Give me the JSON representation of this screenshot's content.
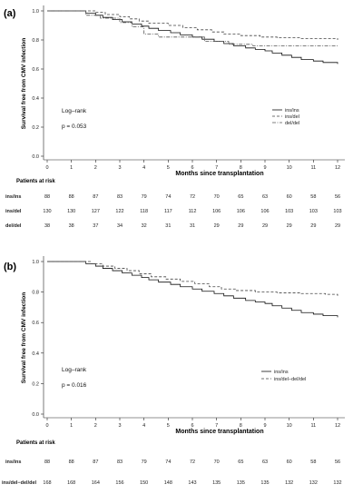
{
  "chart_data": [
    {
      "panel_label": "(a)",
      "type": "line",
      "chart_kind": "kaplan-meier",
      "xlabel": "Months since transplantation",
      "ylabel": "Survival free from CMV infection",
      "xlim": [
        0,
        12
      ],
      "ylim": [
        0,
        1
      ],
      "x_ticks": [
        0,
        1,
        2,
        3,
        4,
        5,
        6,
        7,
        8,
        9,
        10,
        11,
        12
      ],
      "y_ticks": [
        "0.0",
        "0.2",
        "0.4",
        "0.6",
        "0.8",
        "1.0"
      ],
      "annotation_test": "Log–rank",
      "annotation_p": "p = 0.053",
      "legend_position": "right",
      "series": [
        {
          "name": "ins/ins",
          "dash": "solid",
          "color": "#111111",
          "points": [
            [
              0,
              1
            ],
            [
              1.2,
              1
            ],
            [
              1.6,
              0.985
            ],
            [
              2,
              0.97
            ],
            [
              2.3,
              0.955
            ],
            [
              2.7,
              0.94
            ],
            [
              3.1,
              0.925
            ],
            [
              3.5,
              0.91
            ],
            [
              3.9,
              0.895
            ],
            [
              4.2,
              0.88
            ],
            [
              4.6,
              0.865
            ],
            [
              5.1,
              0.85
            ],
            [
              5.5,
              0.835
            ],
            [
              6,
              0.82
            ],
            [
              6.4,
              0.805
            ],
            [
              6.9,
              0.79
            ],
            [
              7.3,
              0.775
            ],
            [
              7.7,
              0.76
            ],
            [
              8.2,
              0.745
            ],
            [
              8.6,
              0.735
            ],
            [
              9,
              0.725
            ],
            [
              9.3,
              0.71
            ],
            [
              9.7,
              0.695
            ],
            [
              10.1,
              0.68
            ],
            [
              10.5,
              0.665
            ],
            [
              11,
              0.655
            ],
            [
              11.4,
              0.645
            ],
            [
              12,
              0.635
            ]
          ]
        },
        {
          "name": "ins/del",
          "dash": "dashed",
          "color": "#444444",
          "points": [
            [
              0,
              1
            ],
            [
              1.5,
              1
            ],
            [
              2,
              0.99
            ],
            [
              2.4,
              0.975
            ],
            [
              3,
              0.96
            ],
            [
              3.4,
              0.945
            ],
            [
              3.8,
              0.93
            ],
            [
              4.2,
              0.915
            ],
            [
              5,
              0.9
            ],
            [
              5.6,
              0.885
            ],
            [
              6.2,
              0.87
            ],
            [
              6.8,
              0.855
            ],
            [
              7.3,
              0.84
            ],
            [
              8,
              0.83
            ],
            [
              8.8,
              0.82
            ],
            [
              9.5,
              0.815
            ],
            [
              10.5,
              0.81
            ],
            [
              12,
              0.8
            ]
          ]
        },
        {
          "name": "del/del",
          "dash": "dotdash",
          "color": "#555555",
          "points": [
            [
              0,
              1
            ],
            [
              1,
              1
            ],
            [
              1.6,
              0.97
            ],
            [
              2.2,
              0.95
            ],
            [
              3,
              0.92
            ],
            [
              3.5,
              0.89
            ],
            [
              4,
              0.84
            ],
            [
              4.6,
              0.82
            ],
            [
              5.5,
              0.82
            ],
            [
              6.5,
              0.79
            ],
            [
              7.5,
              0.77
            ],
            [
              8.5,
              0.76
            ],
            [
              10,
              0.76
            ],
            [
              12,
              0.76
            ]
          ]
        }
      ],
      "risk_table": {
        "title": "Patients at risk",
        "rows": [
          {
            "label": "ins/ins",
            "values": [
              "88",
              "88",
              "87",
              "83",
              "79",
              "74",
              "72",
              "70",
              "65",
              "63",
              "60",
              "58",
              "56"
            ]
          },
          {
            "label": "ins/del",
            "values": [
              "130",
              "130",
              "127",
              "122",
              "118",
              "117",
              "112",
              "106",
              "106",
              "106",
              "103",
              "103",
              "103"
            ]
          },
          {
            "label": "del/del",
            "values": [
              "38",
              "38",
              "37",
              "34",
              "32",
              "31",
              "31",
              "29",
              "29",
              "29",
              "29",
              "29",
              "29"
            ]
          }
        ]
      }
    },
    {
      "panel_label": "(b)",
      "type": "line",
      "chart_kind": "kaplan-meier",
      "xlabel": "Months since transplantation",
      "ylabel": "Survival free from CMV infection",
      "xlim": [
        0,
        12
      ],
      "ylim": [
        0,
        1
      ],
      "x_ticks": [
        0,
        1,
        2,
        3,
        4,
        5,
        6,
        7,
        8,
        9,
        10,
        11,
        12
      ],
      "y_ticks": [
        "0.0",
        "0.2",
        "0.4",
        "0.6",
        "0.8",
        "1.0"
      ],
      "annotation_test": "Log–rank",
      "annotation_p": "p = 0.016",
      "legend_position": "right",
      "series": [
        {
          "name": "ins/ins",
          "dash": "solid",
          "color": "#111111",
          "points": [
            [
              0,
              1
            ],
            [
              1.2,
              1
            ],
            [
              1.6,
              0.985
            ],
            [
              2,
              0.97
            ],
            [
              2.3,
              0.955
            ],
            [
              2.7,
              0.94
            ],
            [
              3.1,
              0.925
            ],
            [
              3.5,
              0.91
            ],
            [
              3.9,
              0.895
            ],
            [
              4.2,
              0.88
            ],
            [
              4.6,
              0.865
            ],
            [
              5.1,
              0.85
            ],
            [
              5.5,
              0.835
            ],
            [
              6,
              0.82
            ],
            [
              6.4,
              0.805
            ],
            [
              6.9,
              0.79
            ],
            [
              7.3,
              0.775
            ],
            [
              7.7,
              0.76
            ],
            [
              8.2,
              0.745
            ],
            [
              8.6,
              0.735
            ],
            [
              9,
              0.725
            ],
            [
              9.3,
              0.71
            ],
            [
              9.7,
              0.695
            ],
            [
              10.1,
              0.68
            ],
            [
              10.5,
              0.665
            ],
            [
              11,
              0.655
            ],
            [
              11.4,
              0.645
            ],
            [
              12,
              0.635
            ]
          ]
        },
        {
          "name": "ins/del−del/del",
          "dash": "dashed",
          "color": "#444444",
          "points": [
            [
              0,
              1
            ],
            [
              1.4,
              1
            ],
            [
              1.8,
              0.985
            ],
            [
              2.3,
              0.97
            ],
            [
              2.8,
              0.955
            ],
            [
              3.3,
              0.94
            ],
            [
              3.8,
              0.92
            ],
            [
              4.3,
              0.9
            ],
            [
              4.9,
              0.885
            ],
            [
              5.5,
              0.87
            ],
            [
              6.1,
              0.855
            ],
            [
              6.7,
              0.835
            ],
            [
              7.2,
              0.82
            ],
            [
              7.8,
              0.81
            ],
            [
              8.6,
              0.8
            ],
            [
              9.5,
              0.795
            ],
            [
              10.5,
              0.79
            ],
            [
              11.5,
              0.785
            ],
            [
              12,
              0.775
            ]
          ]
        }
      ],
      "risk_table": {
        "title": "Patients at risk",
        "rows": [
          {
            "label": "ins/ins",
            "values": [
              "88",
              "88",
              "87",
              "83",
              "79",
              "74",
              "72",
              "70",
              "65",
              "63",
              "60",
              "58",
              "56"
            ]
          },
          {
            "label": "ins/del−del/del",
            "values": [
              "168",
              "168",
              "164",
              "156",
              "150",
              "148",
              "143",
              "135",
              "135",
              "135",
              "132",
              "132",
              "132"
            ]
          }
        ]
      }
    }
  ]
}
